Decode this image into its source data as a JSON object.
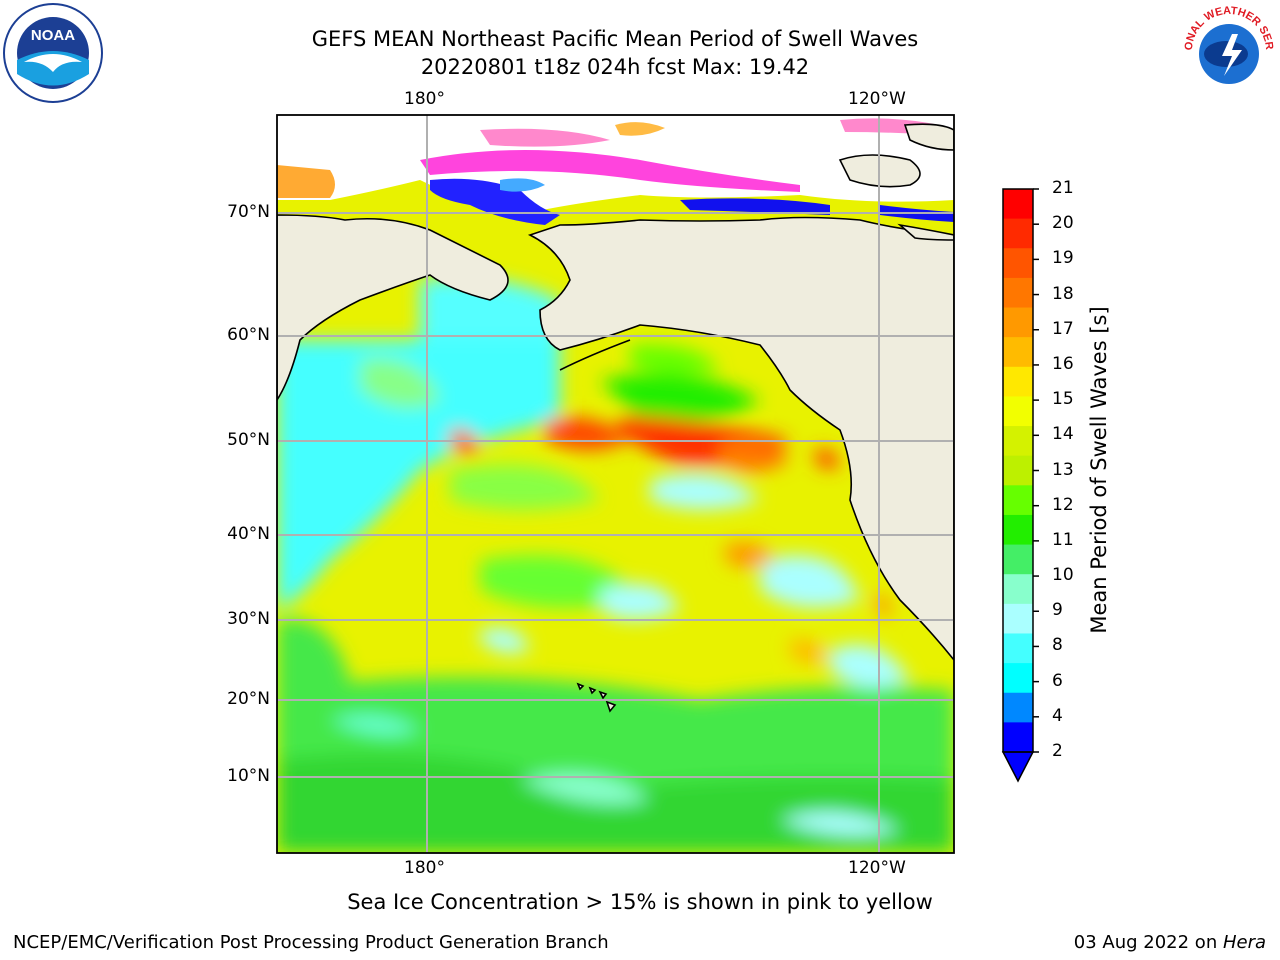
{
  "title": {
    "line1": "GEFS MEAN Northeast Pacific Mean Period of Swell Waves",
    "line2": "20220801 t18z 024h fcst   Max: 19.42"
  },
  "map": {
    "top_lon_labels": [
      "180°",
      "120°W"
    ],
    "bottom_lon_labels": [
      "180°",
      "120°W"
    ],
    "lat_labels": [
      "70°N",
      "60°N",
      "50°N",
      "40°N",
      "30°N",
      "20°N",
      "10°N"
    ],
    "land_color": "#efedde",
    "grid_color": "#b0b0b0"
  },
  "colorbar": {
    "label": "Mean Period of Swell Waves [s]",
    "ticks": [
      "21",
      "20",
      "19",
      "18",
      "17",
      "16",
      "15",
      "14",
      "13",
      "12",
      "11",
      "10",
      "9",
      "8",
      "6",
      "4",
      "2"
    ],
    "colors": [
      "#ff0000",
      "#ff2a00",
      "#ff5500",
      "#ff7700",
      "#ff9900",
      "#ffbb00",
      "#ffe800",
      "#f2ff00",
      "#d4f200",
      "#bdf000",
      "#66ff00",
      "#22ee00",
      "#44ee66",
      "#88ffcc",
      "#aaffff",
      "#44ffff",
      "#00ffff",
      "#0088ff",
      "#0000ff"
    ]
  },
  "note": "Sea Ice Concentration > 15% is shown in pink to yellow",
  "footer": {
    "credit": "NCEP/EMC/Verification Post Processing Product Generation Branch",
    "date_prefix": "03 Aug 2022 on ",
    "machine": "Hera"
  },
  "logos": {
    "noaa": "NOAA",
    "nws_text": "NATIONAL WEATHER SERVICE"
  }
}
